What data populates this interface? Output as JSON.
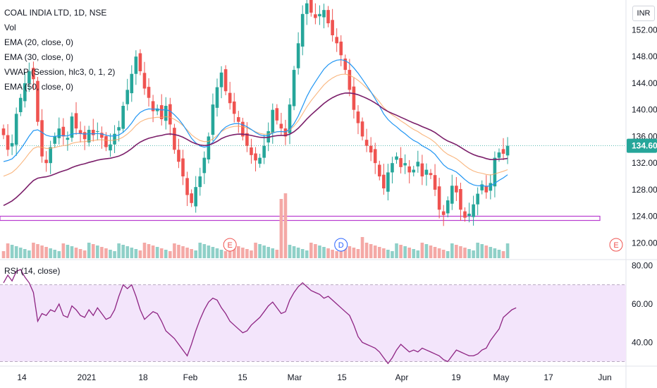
{
  "legend": {
    "title": "COAL INDIA LTD, 1D, NSE",
    "items": [
      "Vol",
      "EMA (20, close, 0)",
      "EMA (30, close, 0)",
      "VWAP (Session, hlc3, 0, 1, 2)",
      "EMA (50, close, 0)"
    ],
    "rsi_title": "RSI (14, close)"
  },
  "currency_button": "INR",
  "colors": {
    "up": "#26a69a",
    "down": "#ef5350",
    "ema20": "#2196f3",
    "ema30": "#f7a35c",
    "ema50": "#7b1f6a",
    "rsi_line": "#8e2483",
    "rsi_band": "#f3e5fb",
    "hline": "#b83cd0"
  },
  "chart_data": [
    {
      "type": "candlestick",
      "title": "COAL INDIA LTD, 1D, NSE",
      "ylim": [
        117.5,
        156.5
      ],
      "y_ticks": [
        "120.00",
        "124.00",
        "128.00",
        "132.00",
        "136.00",
        "140.00",
        "144.00",
        "148.00",
        "152.00"
      ],
      "x_ticks": [
        "14",
        "2021",
        "18",
        "Feb",
        "15",
        "Mar",
        "15",
        "Apr",
        "19",
        "May",
        "17",
        "Jun"
      ],
      "last_price_label": "134.60",
      "horizontal_level": 123.7,
      "earnings_markers": [
        "E",
        "D",
        "E"
      ],
      "close": [
        136.2,
        134.0,
        135.0,
        139.4,
        141.8,
        144.0,
        145.8,
        144.6,
        138.2,
        133.0,
        132.0,
        134.4,
        136.0,
        137.2,
        136.0,
        135.8,
        139.0,
        137.2,
        136.4,
        135.6,
        137.0,
        136.2,
        136.8,
        135.8,
        134.4,
        134.8,
        136.4,
        137.4,
        140.6,
        143.0,
        145.4,
        148.0,
        145.8,
        143.2,
        141.8,
        139.8,
        140.2,
        138.6,
        140.6,
        137.8,
        134.0,
        132.2,
        130.0,
        127.2,
        126.0,
        128.4,
        130.0,
        132.8,
        136.0,
        140.8,
        143.4,
        145.6,
        142.8,
        141.0,
        139.4,
        138.2,
        136.0,
        134.6,
        133.2,
        132.4,
        132.8,
        134.6,
        136.8,
        140.0,
        138.4,
        137.2,
        136.0,
        140.8,
        146.0,
        150.0,
        154.4,
        156.0,
        154.6,
        153.8,
        154.4,
        155.0,
        153.0,
        151.2,
        150.0,
        148.2,
        146.0,
        143.0,
        140.0,
        138.0,
        136.0,
        134.6,
        133.6,
        132.0,
        130.0,
        128.2,
        130.6,
        132.0,
        133.0,
        131.4,
        132.0,
        130.6,
        131.0,
        132.2,
        130.0,
        131.0,
        130.2,
        128.0,
        125.0,
        124.2,
        126.4,
        128.6,
        127.6,
        125.0,
        123.8,
        124.4,
        125.8,
        127.4,
        128.8,
        127.6,
        129.0,
        132.8,
        133.6,
        133.4,
        134.6
      ],
      "volume_note": "volume bars, values unlabeled",
      "indicators": [
        "EMA 20",
        "EMA 30",
        "VWAP",
        "EMA 50"
      ]
    },
    {
      "type": "line",
      "title": "RSI (14, close)",
      "ylim": [
        28,
        82
      ],
      "y_ticks": [
        "40.00",
        "60.00",
        "80.00"
      ],
      "band": [
        30,
        70
      ],
      "values": [
        71,
        75,
        72,
        77,
        78,
        74,
        71,
        66,
        51,
        55,
        54,
        57,
        56,
        60,
        54,
        53,
        59,
        57,
        54,
        53,
        57,
        54,
        58,
        55,
        52,
        53,
        57,
        64,
        70,
        68,
        70,
        64,
        57,
        52,
        54,
        56,
        55,
        51,
        46,
        44,
        42,
        39,
        36,
        33,
        39,
        46,
        52,
        57,
        61,
        63,
        62,
        58,
        55,
        51,
        49,
        47,
        45,
        46,
        49,
        51,
        53,
        56,
        59,
        61,
        58,
        55,
        56,
        62,
        66,
        69,
        71,
        69,
        67,
        66,
        65,
        63,
        64,
        62,
        60,
        58,
        56,
        54,
        49,
        43,
        40,
        39,
        38,
        37,
        35,
        32,
        29,
        32,
        36,
        39,
        37,
        35,
        36,
        35,
        37,
        36,
        35,
        34,
        33,
        31,
        30,
        33,
        36,
        35,
        34,
        33,
        33,
        34,
        36,
        37,
        41,
        44,
        47,
        53,
        55,
        57,
        58
      ]
    }
  ]
}
